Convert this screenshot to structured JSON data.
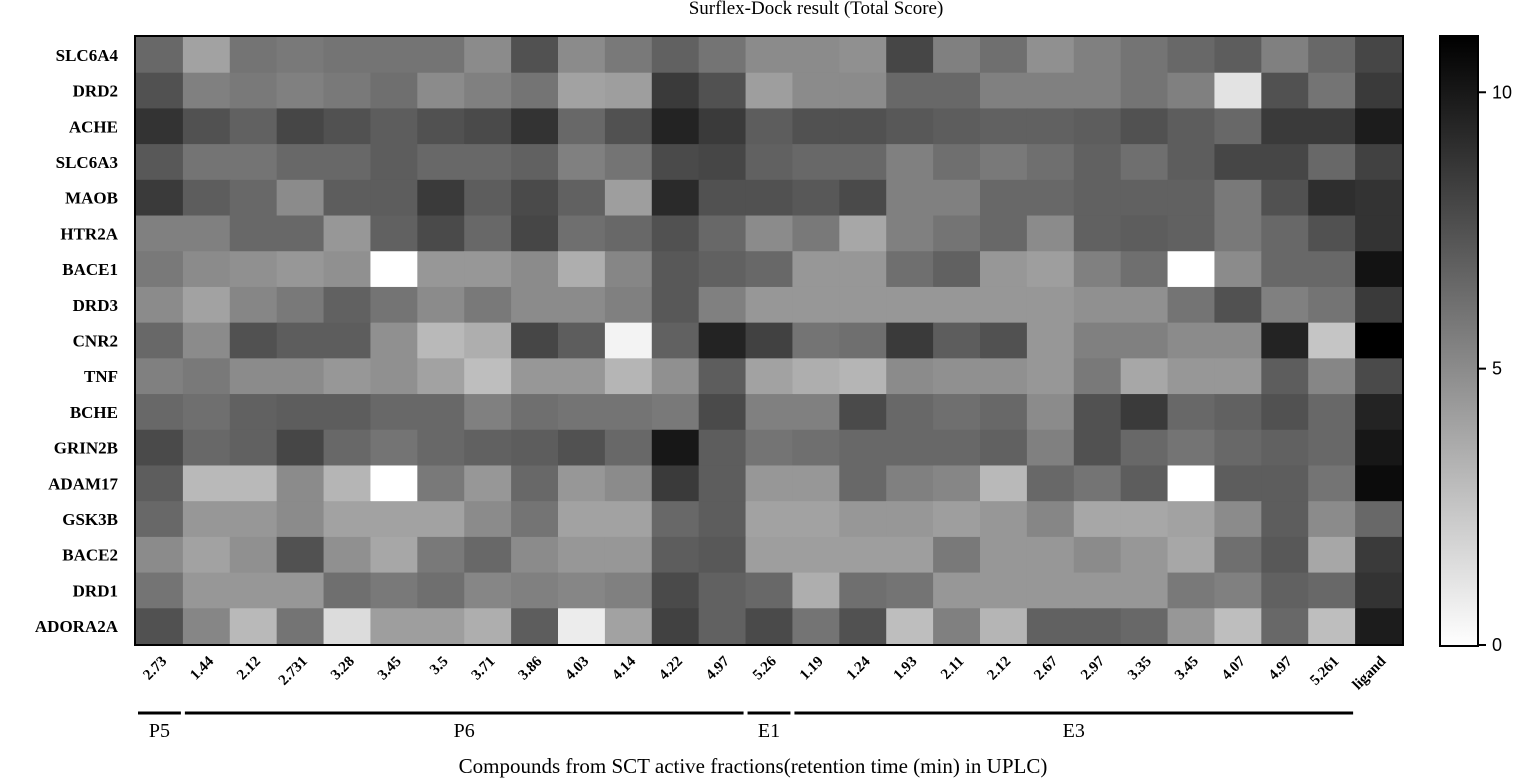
{
  "chart_data": {
    "type": "heatmap",
    "title": "Surflex-Dock result (Total Score)",
    "xlabel": "Compounds from SCT active fractions(retention time (min) in UPLC)",
    "ylabel": "",
    "colorscale": {
      "min": 0,
      "max": 11,
      "low_color": "#ffffff",
      "high_color": "#000000",
      "ticks": [
        "0",
        "5",
        "10"
      ]
    },
    "columns": [
      "2.73",
      "1.44",
      "2.12",
      "2.731",
      "3.28",
      "3.45",
      "3.5",
      "3.71",
      "3.86",
      "4.03",
      "4.14",
      "4.22",
      "4.97",
      "5.26",
      "1.19",
      "1.24",
      "1.93",
      "2.11",
      "2.12",
      "2.67",
      "2.97",
      "3.35",
      "3.45",
      "4.07",
      "4.97",
      "5.261",
      "ligand"
    ],
    "groups": [
      {
        "label": "P5",
        "start": 0,
        "end": 0
      },
      {
        "label": "P6",
        "start": 1,
        "end": 12
      },
      {
        "label": "E1",
        "start": 13,
        "end": 13
      },
      {
        "label": "E3",
        "start": 14,
        "end": 25
      }
    ],
    "rows": [
      "SLC6A4",
      "DRD2",
      "ACHE",
      "SLC6A3",
      "MAOB",
      "HTR2A",
      "BACE1",
      "DRD3",
      "CNR2",
      "TNF",
      "BCHE",
      "GRIN2B",
      "ADAM17",
      "GSK3B",
      "BACE2",
      "DRD1",
      "ADORA2A"
    ],
    "values": [
      [
        6.5,
        4.0,
        6.0,
        5.8,
        6.0,
        6.0,
        6.0,
        5.0,
        7.5,
        5.0,
        5.8,
        6.8,
        6.0,
        5.0,
        5.0,
        4.8,
        8.0,
        5.5,
        6.2,
        4.8,
        5.5,
        6.0,
        6.5,
        7.0,
        5.5,
        6.5,
        8.0
      ],
      [
        7.5,
        5.5,
        5.8,
        5.5,
        5.8,
        6.2,
        5.0,
        5.5,
        6.0,
        4.0,
        4.2,
        8.5,
        7.5,
        4.2,
        5.0,
        5.0,
        6.5,
        6.5,
        5.5,
        5.5,
        5.5,
        6.0,
        5.5,
        1.2,
        7.5,
        6.0,
        8.5
      ],
      [
        8.8,
        7.5,
        6.8,
        8.0,
        7.5,
        7.0,
        7.5,
        7.8,
        8.8,
        6.5,
        7.5,
        9.5,
        8.5,
        7.0,
        7.5,
        7.5,
        7.2,
        7.0,
        6.8,
        6.8,
        7.0,
        7.5,
        7.0,
        6.5,
        8.5,
        8.5,
        9.8
      ],
      [
        7.2,
        6.0,
        6.0,
        6.5,
        6.5,
        7.0,
        6.5,
        6.5,
        6.8,
        5.5,
        6.0,
        7.8,
        8.0,
        6.8,
        6.5,
        6.5,
        5.5,
        6.2,
        5.8,
        6.2,
        6.8,
        6.2,
        7.0,
        8.0,
        8.0,
        6.5,
        8.2
      ],
      [
        8.5,
        7.0,
        6.5,
        5.0,
        7.0,
        7.0,
        8.5,
        7.0,
        7.8,
        6.8,
        4.2,
        9.2,
        7.5,
        7.5,
        7.2,
        7.8,
        5.5,
        5.5,
        6.5,
        6.5,
        6.8,
        6.8,
        6.8,
        5.8,
        7.5,
        9.0,
        8.8
      ],
      [
        5.5,
        5.5,
        6.5,
        6.5,
        4.5,
        6.8,
        7.8,
        6.5,
        8.0,
        6.2,
        6.5,
        7.5,
        6.5,
        5.0,
        5.8,
        3.8,
        5.5,
        6.0,
        6.5,
        5.0,
        6.8,
        7.0,
        6.8,
        5.8,
        6.5,
        7.5,
        8.8
      ],
      [
        5.8,
        5.0,
        4.8,
        4.5,
        4.8,
        0.0,
        4.5,
        4.5,
        5.0,
        3.5,
        5.2,
        7.2,
        6.8,
        6.5,
        4.5,
        4.5,
        6.2,
        6.8,
        4.5,
        4.2,
        5.5,
        6.2,
        0.0,
        5.0,
        6.5,
        6.5,
        10.2
      ],
      [
        5.0,
        4.0,
        5.2,
        5.8,
        6.8,
        6.0,
        5.0,
        5.8,
        5.0,
        5.0,
        5.5,
        7.2,
        5.5,
        4.5,
        4.5,
        4.5,
        4.5,
        4.5,
        4.5,
        4.5,
        4.8,
        4.8,
        6.0,
        7.5,
        5.5,
        6.0,
        8.5
      ],
      [
        6.5,
        5.0,
        7.5,
        7.0,
        7.0,
        4.8,
        3.0,
        3.5,
        8.0,
        7.0,
        0.5,
        6.8,
        9.5,
        8.2,
        6.0,
        6.2,
        8.5,
        7.0,
        7.5,
        4.5,
        5.5,
        5.5,
        5.0,
        5.0,
        9.5,
        2.5,
        11.0
      ],
      [
        5.5,
        5.8,
        5.0,
        5.0,
        4.5,
        4.8,
        4.0,
        2.8,
        4.5,
        4.5,
        3.2,
        4.8,
        7.0,
        4.0,
        3.5,
        3.2,
        5.0,
        4.8,
        4.8,
        4.5,
        5.8,
        3.8,
        4.5,
        4.5,
        7.0,
        5.2,
        7.8
      ],
      [
        6.5,
        6.2,
        6.8,
        7.0,
        7.0,
        6.5,
        6.5,
        5.5,
        6.2,
        6.0,
        6.0,
        5.8,
        7.8,
        5.5,
        5.5,
        7.8,
        6.5,
        6.2,
        6.5,
        5.0,
        7.5,
        8.5,
        6.5,
        6.8,
        7.5,
        6.5,
        9.5
      ],
      [
        7.8,
        6.5,
        6.8,
        8.0,
        6.5,
        6.0,
        6.5,
        6.8,
        7.0,
        7.5,
        6.5,
        10.0,
        7.0,
        6.0,
        6.2,
        6.5,
        6.5,
        6.5,
        6.8,
        5.5,
        7.5,
        6.5,
        6.0,
        6.5,
        6.8,
        6.5,
        10.0
      ],
      [
        7.0,
        3.0,
        3.0,
        5.0,
        3.2,
        0.0,
        5.8,
        4.5,
        6.5,
        4.5,
        5.0,
        8.5,
        7.0,
        4.5,
        4.5,
        6.5,
        5.5,
        5.2,
        3.0,
        6.5,
        6.0,
        7.0,
        0.0,
        7.0,
        7.0,
        6.0,
        10.5
      ],
      [
        6.5,
        4.5,
        4.5,
        5.0,
        4.0,
        4.0,
        4.0,
        5.0,
        6.0,
        4.0,
        4.0,
        6.5,
        7.0,
        4.0,
        4.0,
        4.5,
        4.5,
        4.2,
        4.5,
        5.2,
        3.8,
        3.8,
        4.0,
        5.0,
        7.0,
        5.0,
        6.5
      ],
      [
        5.0,
        4.0,
        4.8,
        7.5,
        4.8,
        3.8,
        5.8,
        6.5,
        5.0,
        4.5,
        4.5,
        7.0,
        7.2,
        4.2,
        4.2,
        4.2,
        4.2,
        5.8,
        4.5,
        4.5,
        5.0,
        4.5,
        3.8,
        6.2,
        7.2,
        3.8,
        8.5
      ],
      [
        6.0,
        4.5,
        4.5,
        4.5,
        6.2,
        5.8,
        6.2,
        5.2,
        5.5,
        5.2,
        5.5,
        7.8,
        6.8,
        6.5,
        3.5,
        6.2,
        6.0,
        4.5,
        4.5,
        4.5,
        4.5,
        4.5,
        5.8,
        5.5,
        6.8,
        6.5,
        8.8
      ],
      [
        7.5,
        5.2,
        3.0,
        6.0,
        1.5,
        4.2,
        4.2,
        3.5,
        7.0,
        0.8,
        4.0,
        8.2,
        6.8,
        7.8,
        6.0,
        7.5,
        2.8,
        5.5,
        3.2,
        6.8,
        6.8,
        6.5,
        4.5,
        2.8,
        6.5,
        2.8,
        9.8
      ]
    ]
  }
}
